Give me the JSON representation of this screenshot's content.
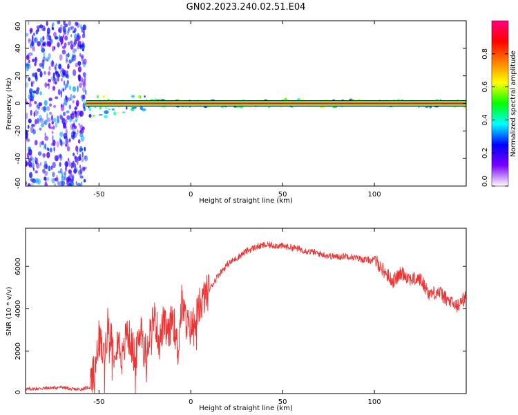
{
  "title": "GN02.2023.240.02.51.E04",
  "chart_data": [
    {
      "type": "heatmap",
      "xlabel": "Height of straight line (km)",
      "ylabel": "Frequency (Hz)",
      "xlim": [
        -90,
        150
      ],
      "ylim": [
        -60,
        60
      ],
      "xticks": [
        -50,
        0,
        50,
        100
      ],
      "yticks": [
        -60,
        -40,
        -20,
        0,
        20,
        40,
        60
      ],
      "colorbar": {
        "label": "Normalized spectral amplitude",
        "range": [
          0,
          1
        ],
        "ticks": [
          "0.0",
          "0.2",
          "0.4",
          "0.6",
          "0.8"
        ],
        "tick_values": [
          0.0,
          0.2,
          0.4,
          0.6,
          0.8
        ],
        "colors": [
          "#ffffff",
          "#7a00ff",
          "#0000ff",
          "#00ffff",
          "#00ff00",
          "#ffff00",
          "#ff8000",
          "#ff0000",
          "#ff0080"
        ]
      },
      "features": {
        "carrier_frequency_hz": 0,
        "carrier_x_range": [
          -57,
          150
        ],
        "noise_region_x_range": [
          -90,
          -57
        ],
        "carrier_amplitude": 0.95
      }
    },
    {
      "type": "line",
      "xlabel": "Height of straight line (km)",
      "ylabel": "SNR (10 * v/v)",
      "xlim": [
        -90,
        150
      ],
      "ylim": [
        0,
        7800
      ],
      "xticks": [
        -50,
        0,
        50,
        100
      ],
      "yticks": [
        0,
        2000,
        4000,
        6000
      ],
      "line_color": "#ee3333",
      "series": [
        {
          "x": [
            -90,
            -80,
            -70,
            -65,
            -60,
            -55,
            -52,
            -50,
            -47,
            -45,
            -42,
            -40,
            -37,
            -35,
            -32,
            -30,
            -27,
            -25,
            -22,
            -20,
            -17,
            -15,
            -12,
            -10,
            -7,
            -5,
            -2,
            0,
            3,
            5,
            10,
            15,
            20,
            25,
            30,
            35,
            40,
            45,
            50,
            55,
            60,
            65,
            70,
            75,
            80,
            85,
            90,
            95,
            100,
            102,
            105,
            110,
            115,
            120,
            125,
            130,
            135,
            140,
            145,
            150
          ],
          "values": [
            200,
            250,
            300,
            200,
            200,
            300,
            1200,
            2600,
            1800,
            3400,
            2000,
            2700,
            1500,
            3000,
            2200,
            1600,
            3300,
            1900,
            3000,
            3700,
            2400,
            3300,
            2700,
            3800,
            2000,
            4300,
            3200,
            3100,
            3600,
            4200,
            4900,
            5600,
            6100,
            6400,
            6700,
            6900,
            7000,
            7000,
            6950,
            6900,
            6800,
            6700,
            6600,
            6500,
            6450,
            6500,
            6400,
            6300,
            6300,
            6150,
            5800,
            5300,
            5700,
            5400,
            5400,
            4700,
            4800,
            4400,
            4100,
            4600
          ]
        }
      ]
    }
  ]
}
